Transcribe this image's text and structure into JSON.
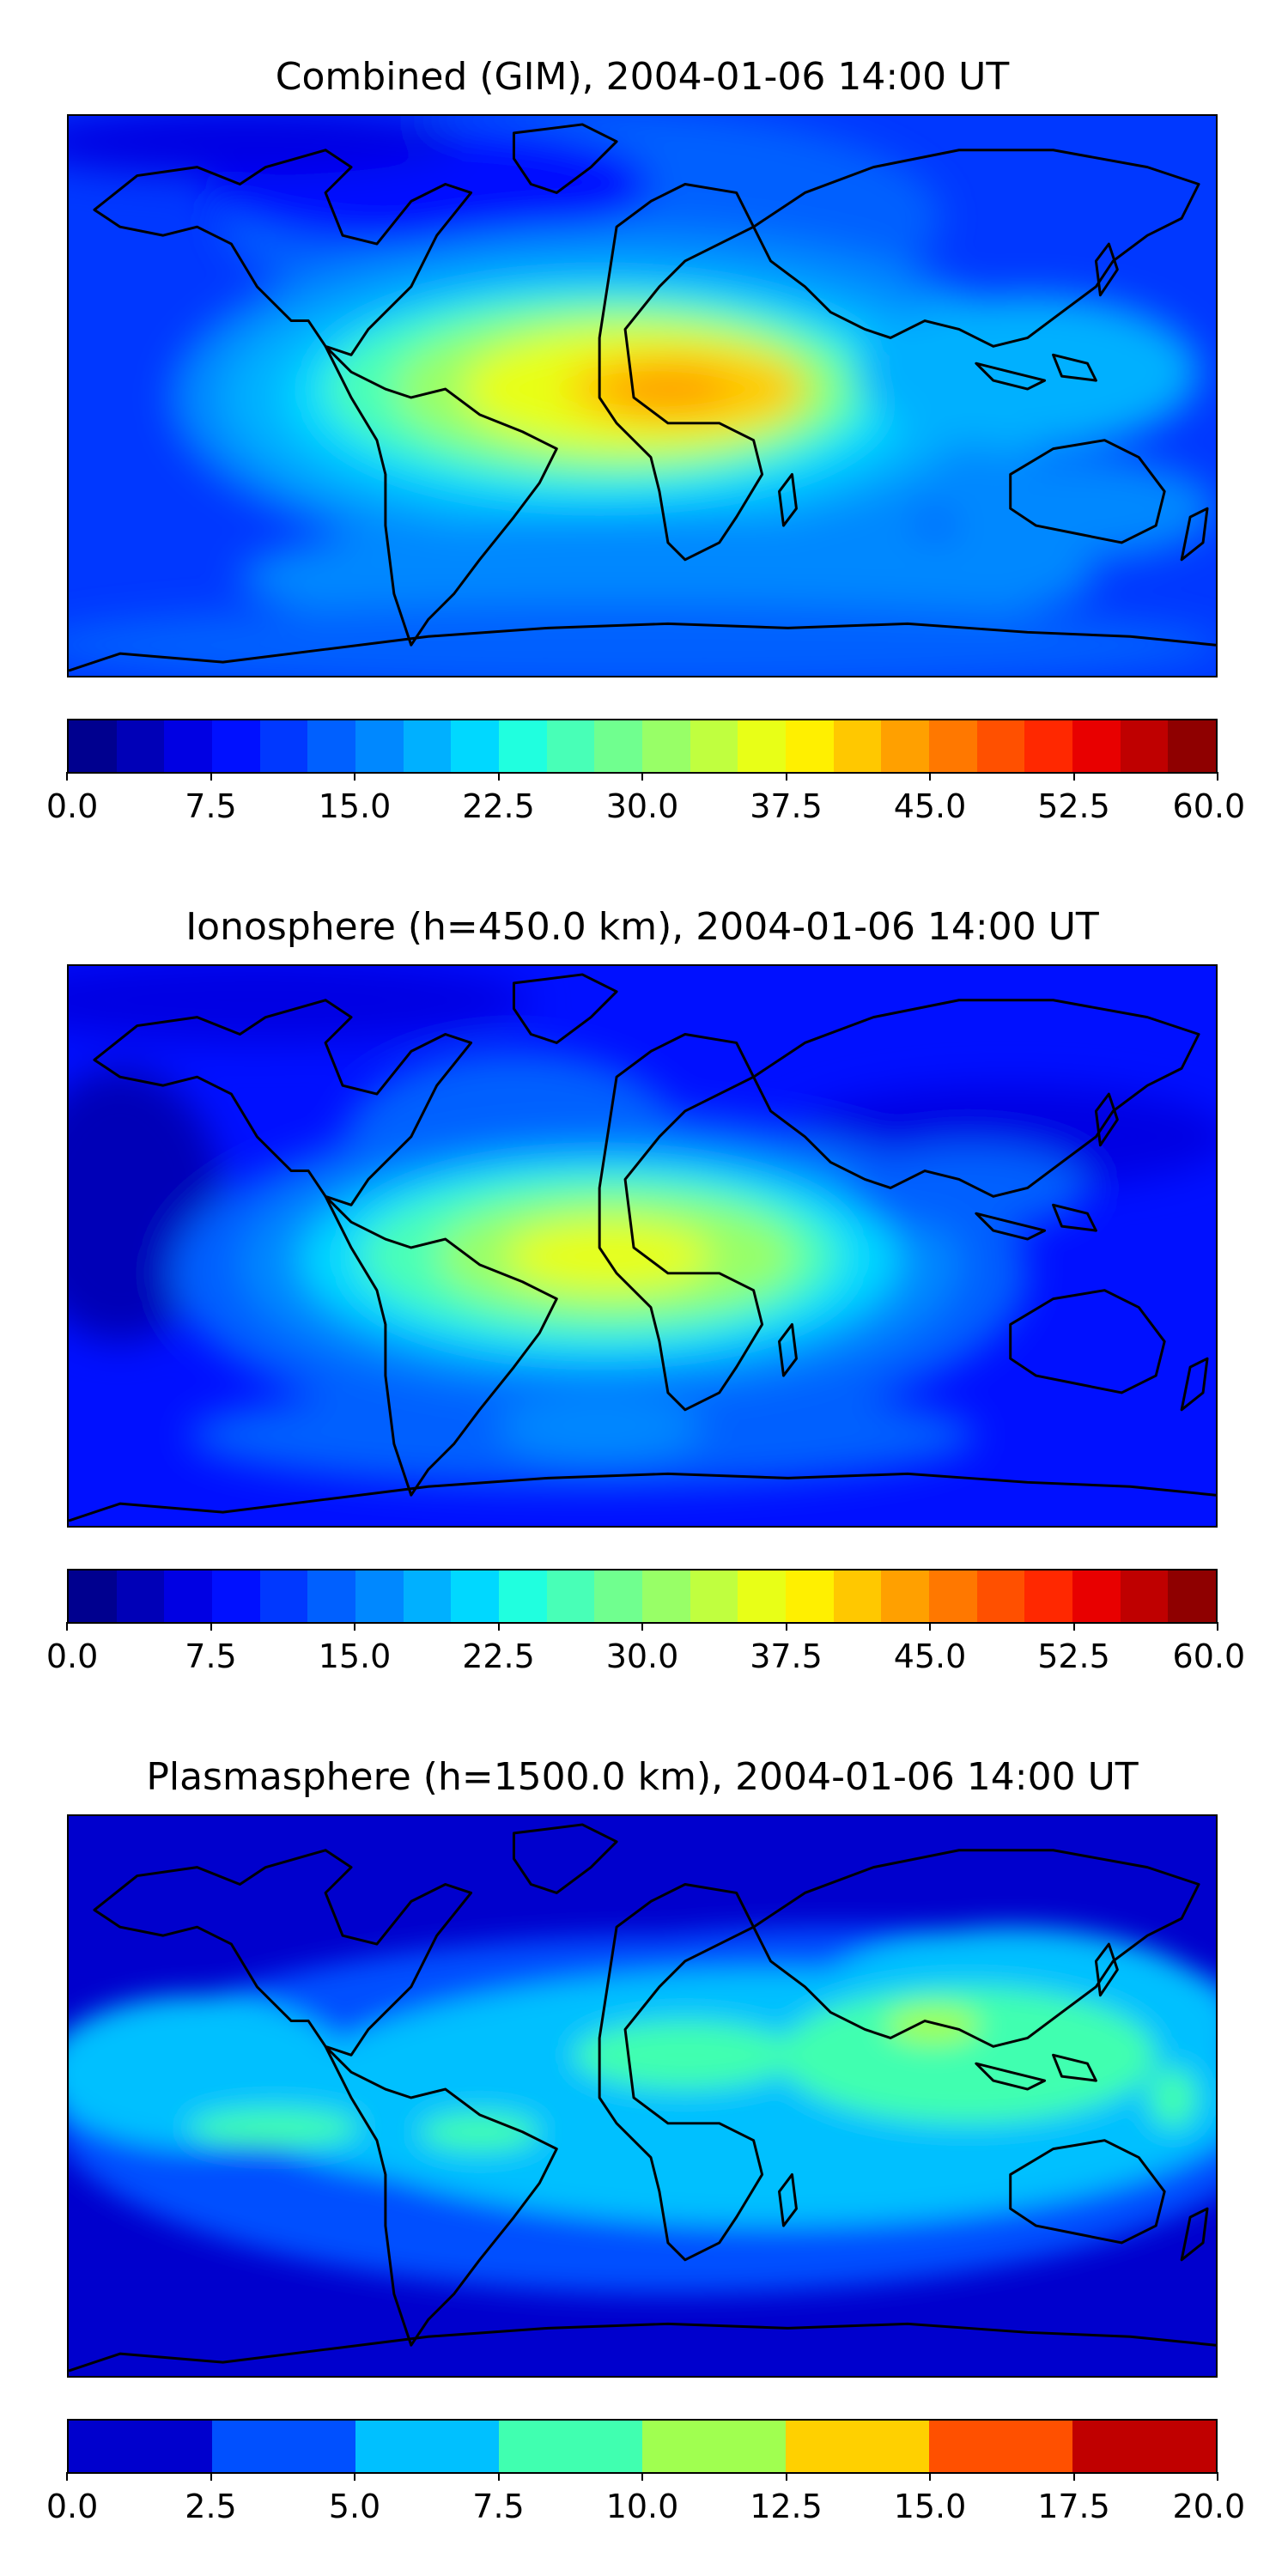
{
  "panels": [
    {
      "title": "Combined (GIM), 2004-01-06 14:00 UT",
      "colorbar": {
        "min": 0.0,
        "max": 60.0,
        "colors": [
          "#00008f",
          "#0000b7",
          "#0000e3",
          "#0010ff",
          "#0038ff",
          "#0060ff",
          "#0088ff",
          "#00b0ff",
          "#00d8ff",
          "#20ffdf",
          "#48ffb7",
          "#70ff8f",
          "#98ff67",
          "#c0ff3f",
          "#e8ff17",
          "#fff000",
          "#ffc800",
          "#ffa000",
          "#ff7800",
          "#ff5000",
          "#ff2800",
          "#e80000",
          "#bf0000",
          "#8f0000"
        ],
        "tick_labels": [
          "0.0",
          "7.5",
          "15.0",
          "22.5",
          "30.0",
          "37.5",
          "45.0",
          "52.5",
          "60.0"
        ]
      }
    },
    {
      "title": "Ionosphere  (h=450.0 km), 2004-01-06 14:00 UT",
      "colorbar": {
        "min": 0.0,
        "max": 60.0,
        "colors": [
          "#00008f",
          "#0000b7",
          "#0000e3",
          "#0010ff",
          "#0038ff",
          "#0060ff",
          "#0088ff",
          "#00b0ff",
          "#00d8ff",
          "#20ffdf",
          "#48ffb7",
          "#70ff8f",
          "#98ff67",
          "#c0ff3f",
          "#e8ff17",
          "#fff000",
          "#ffc800",
          "#ffa000",
          "#ff7800",
          "#ff5000",
          "#ff2800",
          "#e80000",
          "#bf0000",
          "#8f0000"
        ],
        "tick_labels": [
          "0.0",
          "7.5",
          "15.0",
          "22.5",
          "30.0",
          "37.5",
          "45.0",
          "52.5",
          "60.0"
        ]
      }
    },
    {
      "title": "Plasmasphere (h=1500.0 km), 2004-01-06 14:00 UT",
      "colorbar": {
        "min": 0.0,
        "max": 20.0,
        "colors": [
          "#0000cd",
          "#0050ff",
          "#00c0ff",
          "#40ffb0",
          "#a0ff50",
          "#ffd000",
          "#ff5000",
          "#c00000"
        ],
        "tick_labels": [
          "0.0",
          "2.5",
          "5.0",
          "7.5",
          "10.0",
          "12.5",
          "15.0",
          "17.5",
          "20.0"
        ]
      }
    }
  ]
}
